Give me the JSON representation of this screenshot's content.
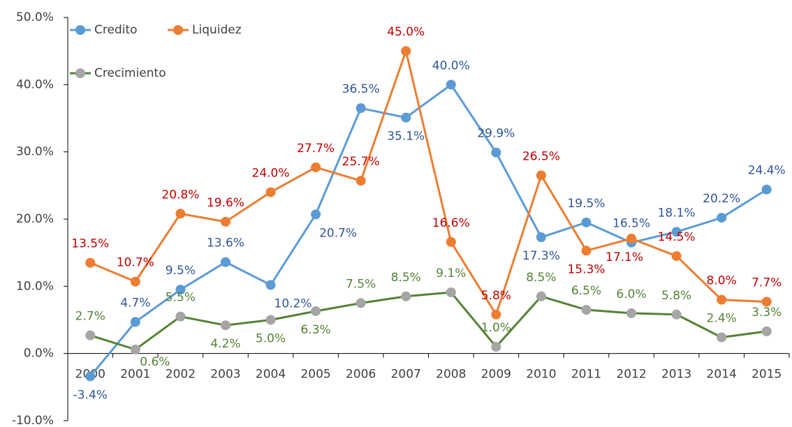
{
  "chart_data": {
    "type": "line",
    "categories": [
      "2000",
      "2001",
      "2002",
      "2003",
      "2004",
      "2005",
      "2006",
      "2007",
      "2008",
      "2009",
      "2010",
      "2011",
      "2012",
      "2013",
      "2014",
      "2015"
    ],
    "series": [
      {
        "name": "Credito",
        "color": "#5b9bd5",
        "marker_color": "#5b9bd5",
        "label_color": "#2f5597",
        "values": [
          -3.4,
          4.7,
          9.5,
          13.6,
          10.2,
          20.7,
          36.5,
          35.1,
          40.0,
          29.9,
          17.3,
          19.5,
          16.5,
          18.1,
          20.2,
          24.4
        ],
        "value_labels": [
          "-3.4%",
          "4.7%",
          "9.5%",
          "13.6%",
          "10.2%",
          "20.7%",
          "36.5%",
          "35.1%",
          "40.0%",
          "29.9%",
          "17.3%",
          "19.5%",
          "16.5%",
          "18.1%",
          "20.2%",
          "24.4%"
        ]
      },
      {
        "name": "Liquidez",
        "color": "#ed7d31",
        "marker_color": "#ed7d31",
        "label_color": "#c00000",
        "values": [
          13.5,
          10.7,
          20.8,
          19.6,
          24.0,
          27.7,
          25.7,
          45.0,
          16.6,
          5.8,
          26.5,
          15.3,
          17.1,
          14.5,
          8.0,
          7.7
        ],
        "value_labels": [
          "13.5%",
          "10.7%",
          "20.8%",
          "19.6%",
          "24.0%",
          "27.7%",
          "25.7%",
          "45.0%",
          "16.6%",
          "5.8%",
          "26.5%",
          "15.3%",
          "17.1%",
          "14.5%",
          "8.0%",
          "7.7%"
        ]
      },
      {
        "name": "Crecimiento",
        "color": "#548235",
        "marker_color": "#a5a5a5",
        "label_color": "#548235",
        "values": [
          2.7,
          0.6,
          5.5,
          4.2,
          5.0,
          6.3,
          7.5,
          8.5,
          9.1,
          1.0,
          8.5,
          6.5,
          6.0,
          5.8,
          2.4,
          3.3
        ],
        "value_labels": [
          "2.7%",
          "0.6%",
          "5.5%",
          "4.2%",
          "5.0%",
          "6.3%",
          "7.5%",
          "8.5%",
          "9.1%",
          "1.0%",
          "8.5%",
          "6.5%",
          "6.0%",
          "5.8%",
          "2.4%",
          "3.3%"
        ]
      }
    ],
    "ylim": [
      -10,
      50
    ],
    "yticks": [
      {
        "value": -10,
        "label": "-10.0%"
      },
      {
        "value": 0,
        "label": "0.0%"
      },
      {
        "value": 10,
        "label": "10.0%"
      },
      {
        "value": 20,
        "label": "20.0%"
      },
      {
        "value": 30,
        "label": "30.0%"
      },
      {
        "value": 40,
        "label": "40.0%"
      },
      {
        "value": 50,
        "label": "50.0%"
      }
    ],
    "grid": false,
    "legend": "top-left"
  }
}
